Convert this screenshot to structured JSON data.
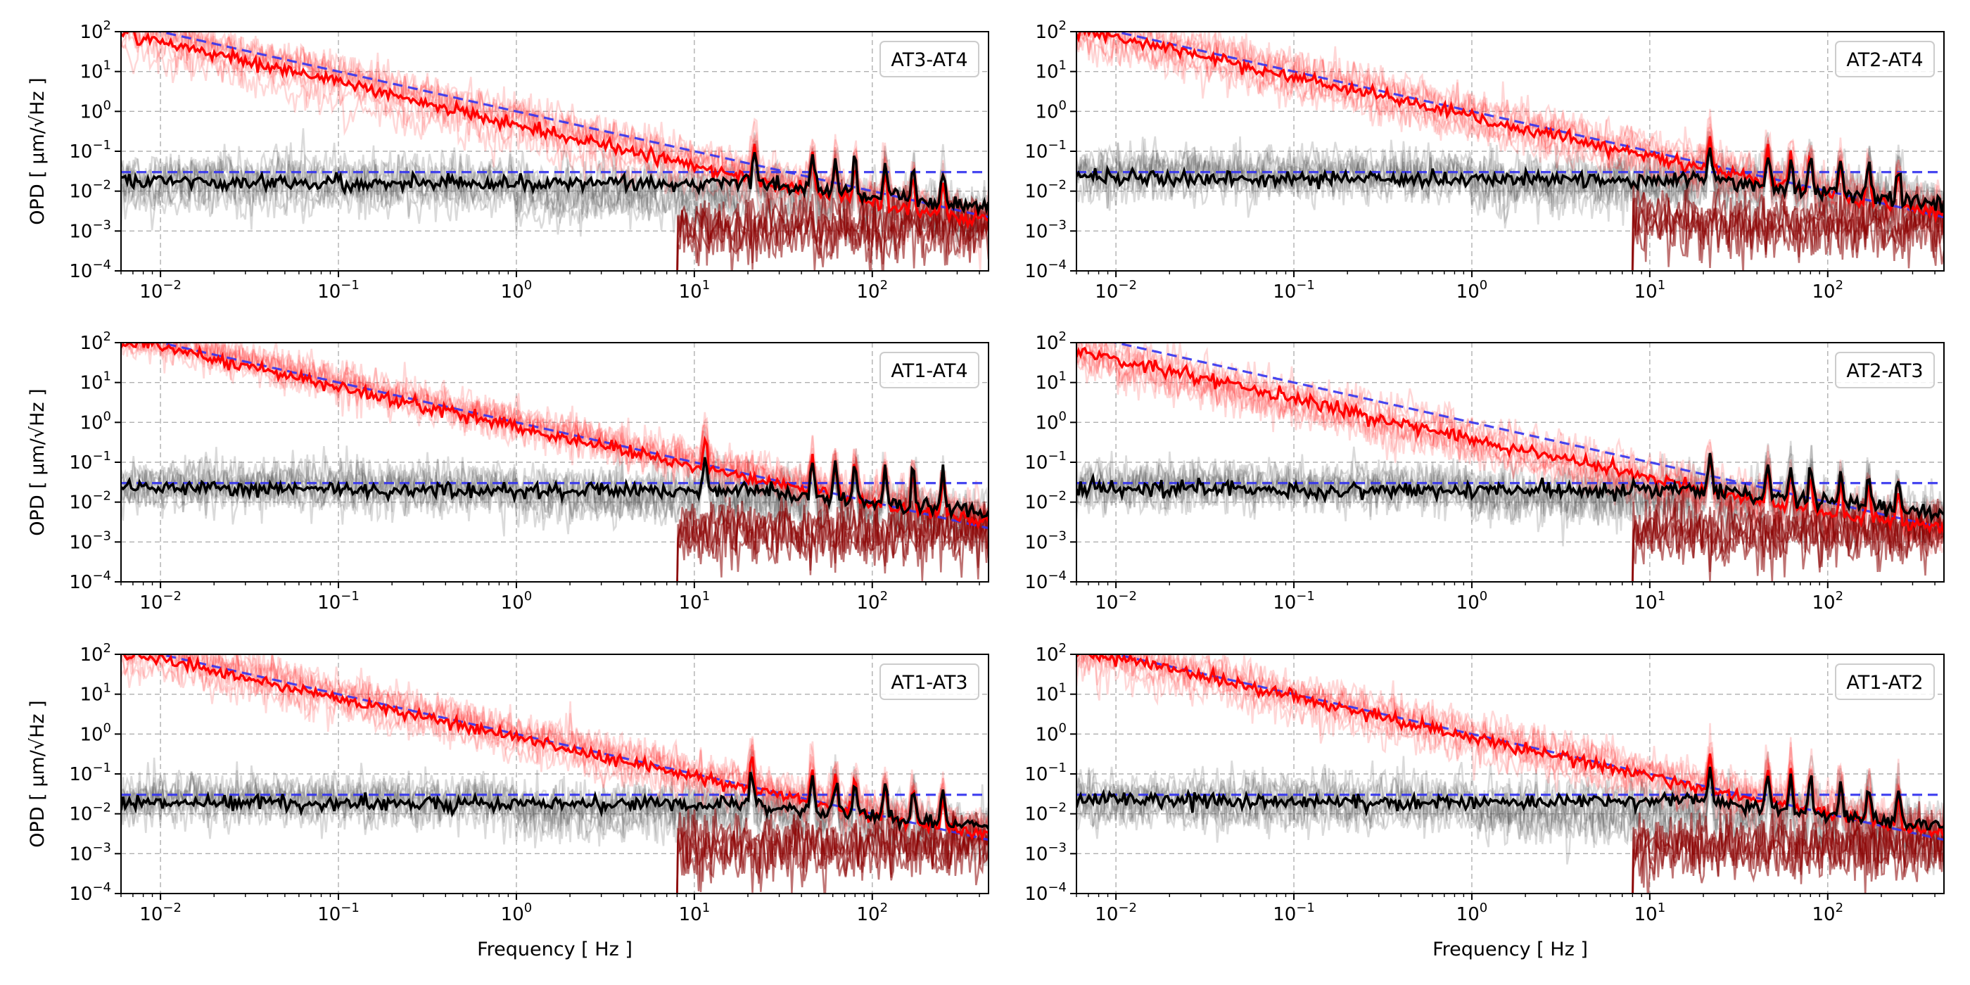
{
  "chart_data": {
    "type": "line",
    "x_scale": "log",
    "y_scale": "log",
    "xlim": [
      0.006,
      450
    ],
    "ylim": [
      0.0001,
      100
    ],
    "x_ticks": [
      {
        "value": 0.01,
        "base": "10",
        "exp": "−2"
      },
      {
        "value": 0.1,
        "base": "10",
        "exp": "−1"
      },
      {
        "value": 1,
        "base": "10",
        "exp": "0"
      },
      {
        "value": 10,
        "base": "10",
        "exp": "1"
      },
      {
        "value": 100,
        "base": "10",
        "exp": "2"
      }
    ],
    "y_ticks": [
      {
        "value": 100,
        "base": "10",
        "exp": "2"
      },
      {
        "value": 10,
        "base": "10",
        "exp": "1"
      },
      {
        "value": 1,
        "base": "10",
        "exp": "0"
      },
      {
        "value": 0.1,
        "base": "10",
        "exp": "−1"
      },
      {
        "value": 0.01,
        "base": "10",
        "exp": "−2"
      },
      {
        "value": 0.001,
        "base": "10",
        "exp": "−3"
      },
      {
        "value": 0.0001,
        "base": "10",
        "exp": "−4"
      }
    ],
    "xlabel": "Frequency [ Hz ]",
    "ylabel": "OPD [ μm/√Hz ]",
    "grid": true,
    "legend_placement": "top-right",
    "colors": {
      "red_series": "#ff0000",
      "black_series": "#000000",
      "reference": "#3333ee",
      "grid": "#b0b0b0"
    },
    "reference_lines": [
      {
        "kind": "power-law",
        "description": "y = 1.0 · f^(−1)",
        "coefficient": 1.0,
        "exponent": -1
      },
      {
        "kind": "constant",
        "value": 0.03
      }
    ],
    "panels": [
      {
        "label": "AT3-AT4",
        "row": 0,
        "col": 0,
        "red_amp": 0.55,
        "red_alpha": 1.05,
        "red_floor": 0.0012,
        "red_peak_f": 21.8,
        "black_level": 0.016,
        "black_peak_f": 21.8,
        "show_xlabel": false
      },
      {
        "label": "AT2-AT4",
        "row": 0,
        "col": 1,
        "red_amp": 0.85,
        "red_alpha": 1.0,
        "red_floor": 0.0015,
        "red_peak_f": 21.8,
        "black_level": 0.02,
        "black_peak_f": 21.8,
        "show_xlabel": false
      },
      {
        "label": "AT1-AT4",
        "row": 1,
        "col": 0,
        "red_amp": 0.9,
        "red_alpha": 1.0,
        "red_floor": 0.0018,
        "red_peak_f": 11.5,
        "black_level": 0.02,
        "black_peak_f": 11.5,
        "show_xlabel": false
      },
      {
        "label": "AT2-AT3",
        "row": 1,
        "col": 1,
        "red_amp": 0.45,
        "red_alpha": 1.0,
        "red_floor": 0.0018,
        "red_peak_f": 21.8,
        "black_level": 0.02,
        "black_peak_f": 21.8,
        "show_xlabel": false
      },
      {
        "label": "AT1-AT3",
        "row": 2,
        "col": 0,
        "red_amp": 0.95,
        "red_alpha": 1.0,
        "red_floor": 0.0015,
        "red_peak_f": 21.0,
        "black_level": 0.018,
        "black_peak_f": 21.0,
        "show_xlabel": true
      },
      {
        "label": "AT1-AT2",
        "row": 2,
        "col": 1,
        "red_amp": 1.0,
        "red_alpha": 1.0,
        "red_floor": 0.0015,
        "red_peak_f": 21.8,
        "black_level": 0.02,
        "black_peak_f": 21.8,
        "show_xlabel": true
      }
    ]
  }
}
